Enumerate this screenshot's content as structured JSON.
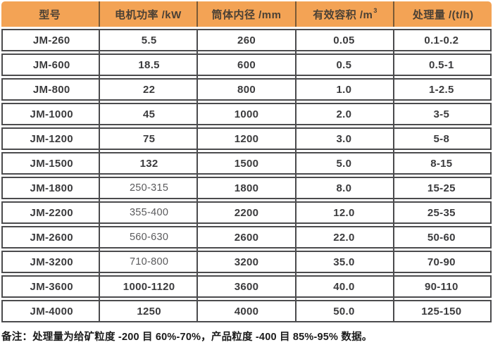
{
  "colors": {
    "header_bg": "#F3A355",
    "header_text": "#4A4035",
    "header_divider": "#7A5A36",
    "border": "#4B4B4D",
    "cell_text": "#3B3B3D",
    "light_text": "#5A5A5C",
    "note_text": "#1A1A1A"
  },
  "chart_data": {
    "type": "table",
    "columns": [
      "型号",
      "电机功率 /kW",
      "筒体内径 /mm",
      "有效容积 /m³",
      "处理量 /(t/h)"
    ],
    "column_keys": [
      "model",
      "power",
      "diameter",
      "volume",
      "capacity"
    ],
    "rows": [
      [
        "JM-260",
        "5.5",
        "260",
        "0.05",
        "0.1-0.2"
      ],
      [
        "JM-600",
        "18.5",
        "600",
        "0.5",
        "0.5-1"
      ],
      [
        "JM-800",
        "22",
        "800",
        "1.0",
        "1-2.5"
      ],
      [
        "JM-1000",
        "45",
        "1000",
        "2.0",
        "3-5"
      ],
      [
        "JM-1200",
        "75",
        "1200",
        "3.0",
        "5-8"
      ],
      [
        "JM-1500",
        "132",
        "1500",
        "5.0",
        "8-15"
      ],
      [
        "JM-1800",
        "250-315",
        "1800",
        "8.0",
        "15-25"
      ],
      [
        "JM-2200",
        "355-400",
        "2200",
        "12.0",
        "25-35"
      ],
      [
        "JM-2600",
        "560-630",
        "2600",
        "22.0",
        "50-60"
      ],
      [
        "JM-3200",
        "710-800",
        "3200",
        "35.0",
        "70-90"
      ],
      [
        "JM-3600",
        "1000-1120",
        "3600",
        "40.0",
        "90-110"
      ],
      [
        "JM-4000",
        "1250",
        "4000",
        "50.0",
        "125-150"
      ]
    ],
    "light_power_rows": [
      6,
      7,
      8,
      9
    ],
    "note": "备注：处理量为给矿粒度 -200 目 60%-70%，产品粒度 -400 目 85%-95% 数据。"
  }
}
